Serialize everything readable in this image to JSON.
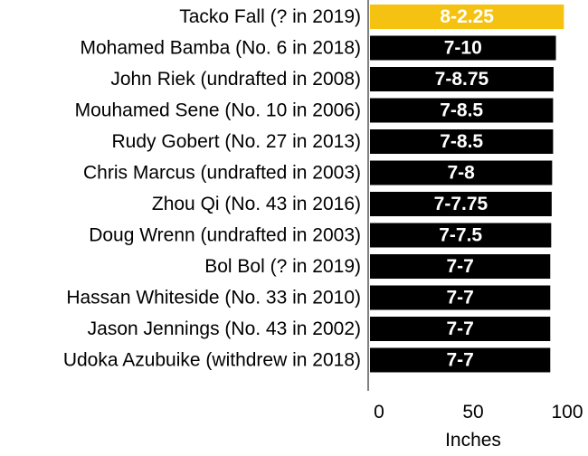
{
  "chart_data": {
    "type": "bar",
    "orientation": "horizontal",
    "title": "",
    "xlabel": "Inches",
    "ylabel": "",
    "xlim": [
      0,
      100
    ],
    "xticks": [
      0,
      50,
      100
    ],
    "grid": false,
    "categories": [
      "Tacko Fall (? in 2019)",
      "Mohamed Bamba (No. 6 in 2018)",
      "John Riek (undrafted in 2008)",
      "Mouhamed Sene (No. 10 in 2006)",
      "Rudy Gobert (No. 27 in 2013)",
      "Chris Marcus (undrafted in 2003)",
      "Zhou Qi (No. 43 in 2016)",
      "Doug Wrenn (undrafted in 2003)",
      "Bol Bol (? in 2019)",
      "Hassan Whiteside (No. 33 in 2010)",
      "Jason Jennings (No. 43 in 2002)",
      "Udoka Azubuike (withdrew in 2018)"
    ],
    "values": [
      98.25,
      94,
      92.75,
      92.5,
      92.5,
      92,
      91.75,
      91.5,
      91,
      91,
      91,
      91
    ],
    "labels": [
      "8-2.25",
      "7-10",
      "7-8.75",
      "7-8.5",
      "7-8.5",
      "7-8",
      "7-7.75",
      "7-7.5",
      "7-7",
      "7-7",
      "7-7",
      "7-7"
    ],
    "colors": {
      "highlight": "#f5c211",
      "default": "#000000",
      "bar_text": "#ffffff"
    },
    "highlight_index": 0
  }
}
